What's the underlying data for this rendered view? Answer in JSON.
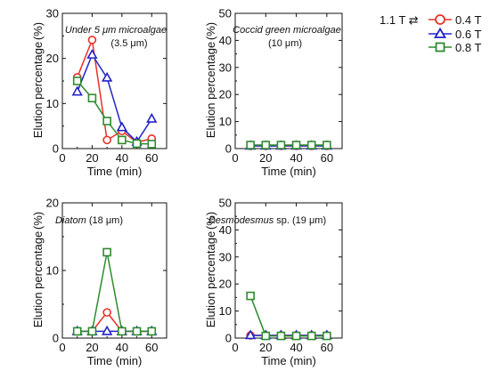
{
  "legend": {
    "header": "1.1 T ⇄",
    "entries": [
      {
        "label": "0.4 T",
        "color": "#e8322a",
        "marker": "circle"
      },
      {
        "label": "0.6 T",
        "color": "#2424c8",
        "marker": "triangle"
      },
      {
        "label": "0.8 T",
        "color": "#2e8b2e",
        "marker": "square"
      }
    ]
  },
  "chart_data": [
    {
      "type": "line",
      "title": "Under 5 μm microalgae",
      "subtitle": "(3.5 μm)",
      "title_italic_part": "Under 5 μm microalgae",
      "xlabel": "Time (min)",
      "ylabel": "Elution percentage",
      "yunit": "(%)",
      "xlim": [
        0,
        70
      ],
      "ylim": [
        0,
        30
      ],
      "xticks": [
        0,
        20,
        40,
        60
      ],
      "yticks": [
        0,
        10,
        20,
        30
      ],
      "x": [
        10,
        20,
        30,
        40,
        50,
        60
      ],
      "series": [
        {
          "name": "0.4 T",
          "values": [
            15.8,
            24.1,
            1.9,
            3.9,
            1.4,
            2.2
          ]
        },
        {
          "name": "0.6 T",
          "values": [
            12.6,
            20.8,
            15.7,
            4.7,
            1.5,
            6.6
          ]
        },
        {
          "name": "0.8 T",
          "values": [
            15.0,
            11.2,
            6.1,
            1.9,
            1.1,
            1.0
          ]
        }
      ]
    },
    {
      "type": "line",
      "title": "Coccid green microalgae",
      "subtitle": "(10 μm)",
      "xlabel": "Time (min)",
      "ylabel": "Elution percentage",
      "yunit": "(%)",
      "xlim": [
        0,
        70
      ],
      "ylim": [
        0,
        50
      ],
      "xticks": [
        0,
        20,
        40,
        60
      ],
      "yticks": [
        0,
        10,
        20,
        30,
        40,
        50
      ],
      "x": [
        10,
        20,
        30,
        40,
        50,
        60
      ],
      "series": [
        {
          "name": "0.4 T",
          "values": [
            1.0,
            1.0,
            1.0,
            1.0,
            1.0,
            1.0
          ]
        },
        {
          "name": "0.6 T",
          "values": [
            1.0,
            1.0,
            1.0,
            1.0,
            1.0,
            1.0
          ]
        },
        {
          "name": "0.8 T",
          "values": [
            1.3,
            1.3,
            1.3,
            1.3,
            1.3,
            1.3
          ]
        }
      ]
    },
    {
      "type": "line",
      "title": "Diatom",
      "subtitle": "(18 μm)",
      "xlabel": "Time (min)",
      "ylabel": "Elution percentage",
      "yunit": "(%)",
      "xlim": [
        0,
        70
      ],
      "ylim": [
        0,
        20
      ],
      "xticks": [
        0,
        20,
        40,
        60
      ],
      "yticks": [
        0,
        10,
        20
      ],
      "x": [
        10,
        20,
        30,
        40,
        50,
        60
      ],
      "series": [
        {
          "name": "0.4 T",
          "values": [
            1.0,
            1.0,
            3.8,
            1.0,
            1.0,
            1.0
          ]
        },
        {
          "name": "0.6 T",
          "values": [
            1.0,
            1.0,
            1.0,
            1.0,
            1.0,
            1.0
          ]
        },
        {
          "name": "0.8 T",
          "values": [
            1.0,
            1.0,
            12.7,
            1.0,
            1.0,
            1.0
          ]
        }
      ]
    },
    {
      "type": "line",
      "title": "Desmodesmus",
      "subtitle": "sp. (19 μm)",
      "xlabel": "Time (min)",
      "ylabel": "Elution percentage",
      "yunit": "(%)",
      "xlim": [
        0,
        70
      ],
      "ylim": [
        0,
        50
      ],
      "xticks": [
        0,
        20,
        40,
        60
      ],
      "yticks": [
        0,
        10,
        20,
        30,
        40,
        50
      ],
      "x": [
        10,
        20,
        30,
        40,
        50,
        60
      ],
      "series": [
        {
          "name": "0.4 T",
          "values": [
            1.0,
            1.0,
            1.0,
            1.0,
            1.0,
            1.0
          ]
        },
        {
          "name": "0.6 T",
          "values": [
            1.0,
            1.0,
            1.0,
            1.0,
            1.0,
            1.0
          ]
        },
        {
          "name": "0.8 T",
          "values": [
            15.6,
            0.8,
            0.8,
            0.8,
            0.8,
            0.8
          ]
        }
      ]
    }
  ]
}
